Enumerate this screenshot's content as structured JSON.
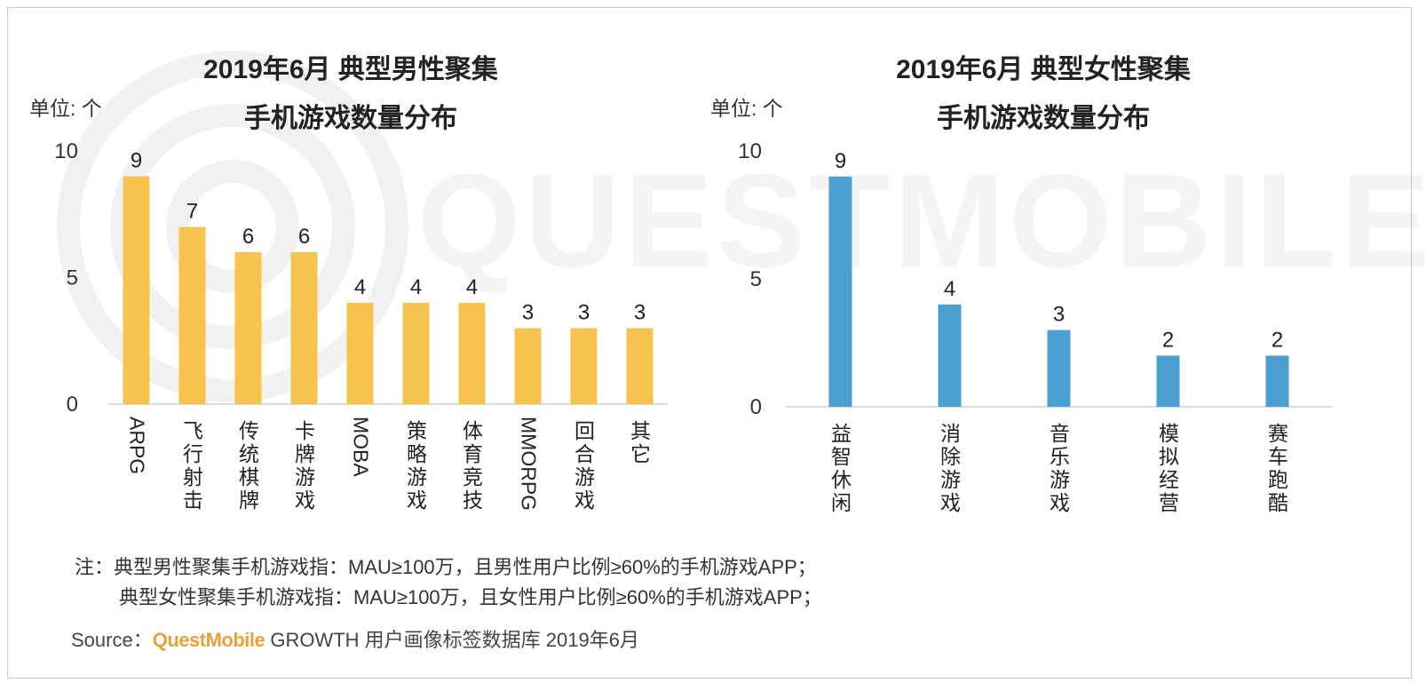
{
  "watermark": "QUESTMOBILE",
  "chart_data": [
    {
      "type": "bar",
      "title": [
        "2019年6月 典型男性聚集",
        "手机游戏数量分布"
      ],
      "unit_label": "单位: 个",
      "categories": [
        "ARPG",
        "飞行射击",
        "传统棋牌",
        "卡牌游戏",
        "MOBA",
        "策略游戏",
        "体育竞技",
        "MMORPG",
        "回合游戏",
        "其它"
      ],
      "values": [
        9,
        7,
        6,
        6,
        4,
        4,
        4,
        3,
        3,
        3
      ],
      "yticks": [
        0,
        5,
        10
      ],
      "ylim": [
        0,
        10
      ],
      "color": "#f5c34e",
      "grid": false
    },
    {
      "type": "bar",
      "title": [
        "2019年6月 典型女性聚集",
        "手机游戏数量分布"
      ],
      "unit_label": "单位: 个",
      "categories": [
        "益智休闲",
        "消除游戏",
        "音乐游戏",
        "模拟经营",
        "赛车跑酷"
      ],
      "values": [
        9,
        4,
        3,
        2,
        2
      ],
      "yticks": [
        0,
        5,
        10
      ],
      "ylim": [
        0,
        10
      ],
      "color": "#4c9fd1",
      "grid": false
    }
  ],
  "notes": {
    "line1": "注：典型男性聚集手机游戏指：MAU≥100万，且男性用户比例≥60%的手机游戏APP；",
    "line2": "典型女性聚集手机游戏指：MAU≥100万，且女性用户比例≥60%的手机游戏APP；"
  },
  "source": {
    "prefix": "Source：",
    "brand": "QuestMobile",
    "text": " GROWTH 用户画像标签数据库 2019年6月"
  },
  "colors": {
    "brand": "#e8a03a",
    "border": "#c9c9c9"
  }
}
